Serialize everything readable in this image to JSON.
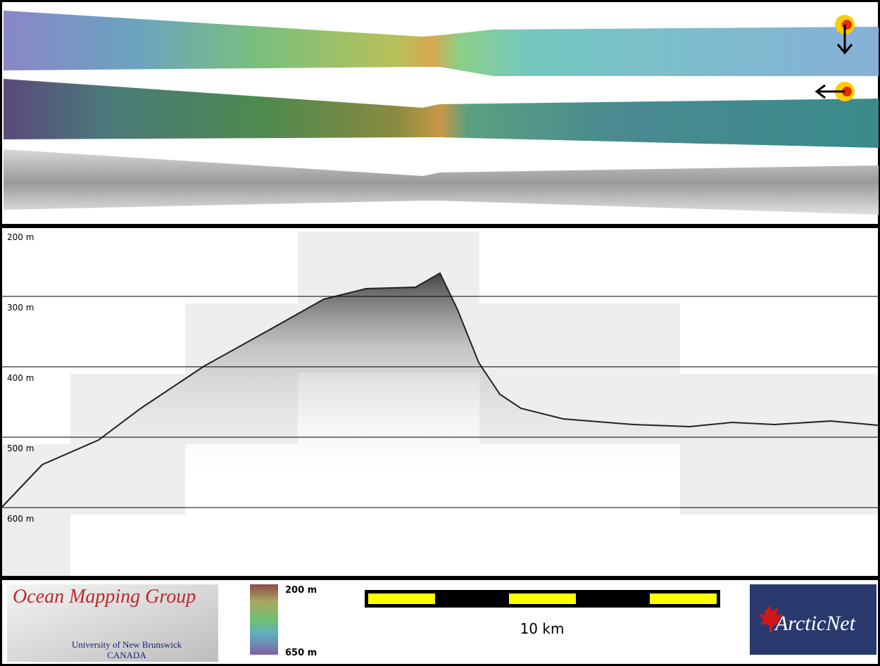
{
  "profile": {
    "depth_labels": [
      "200 m",
      "300 m",
      "400 m",
      "500 m",
      "600 m"
    ]
  },
  "color_bar": {
    "top_label": "200 m",
    "bottom_label": "650 m"
  },
  "scale_bar": {
    "label": "10 km"
  },
  "logos": {
    "omg": {
      "title": "Ocean Mapping Group",
      "line1": "University of New Brunswick",
      "line2": "CANADA"
    },
    "arcticnet": "ArcticNet"
  }
}
